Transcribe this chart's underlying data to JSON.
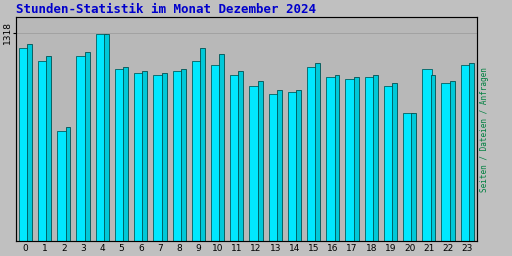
{
  "title": "Stunden-Statistik im Monat Dezember 2024",
  "ylabel_right": "Seiten / Dateien / Anfragen",
  "ytick_label": "1318",
  "background_color": "#c0c0c0",
  "plot_bg_color": "#b8b8b8",
  "title_color": "#0000cc",
  "ylabel_right_color": "#008040",
  "hours": [
    0,
    1,
    2,
    3,
    4,
    5,
    6,
    7,
    8,
    9,
    10,
    11,
    12,
    13,
    14,
    15,
    16,
    17,
    18,
    19,
    20,
    21,
    22,
    23
  ],
  "values_cyan": [
    93,
    87,
    53,
    89,
    100,
    83,
    81,
    80,
    82,
    87,
    85,
    80,
    75,
    71,
    72,
    84,
    79,
    78,
    79,
    75,
    62,
    83,
    76,
    85
  ],
  "values_teal": [
    95,
    89,
    55,
    91,
    100,
    84,
    82,
    81,
    83,
    93,
    90,
    82,
    77,
    73,
    73,
    86,
    80,
    79,
    80,
    76,
    62,
    80,
    77,
    86
  ],
  "xlim": [
    -0.5,
    23.5
  ],
  "ylim": [
    0,
    108
  ]
}
